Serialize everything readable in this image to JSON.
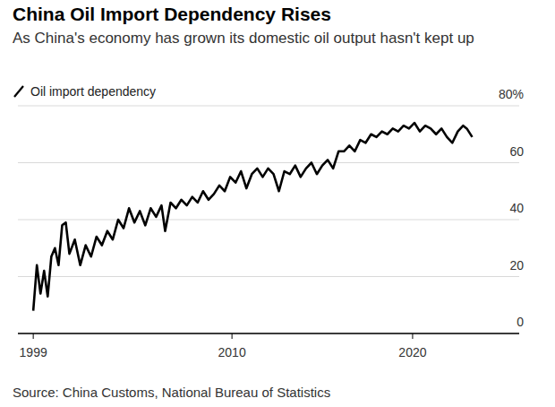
{
  "chart_data": {
    "type": "line",
    "title": "China Oil Import Dependency Rises",
    "subtitle": "As China's economy has grown its domestic oil output hasn't kept up",
    "source": "Source: China Customs, National Bureau of Statistics",
    "x": [
      1999.0,
      1999.2,
      1999.4,
      1999.6,
      1999.8,
      2000.0,
      2000.2,
      2000.4,
      2000.6,
      2000.8,
      2001.0,
      2001.3,
      2001.6,
      2001.9,
      2002.2,
      2002.5,
      2002.8,
      2003.1,
      2003.4,
      2003.7,
      2004.0,
      2004.3,
      2004.6,
      2004.9,
      2005.2,
      2005.5,
      2005.8,
      2006.1,
      2006.3,
      2006.6,
      2006.9,
      2007.2,
      2007.5,
      2007.8,
      2008.1,
      2008.4,
      2008.7,
      2009.0,
      2009.3,
      2009.6,
      2009.9,
      2010.2,
      2010.5,
      2010.8,
      2011.1,
      2011.4,
      2011.7,
      2012.0,
      2012.3,
      2012.6,
      2012.9,
      2013.2,
      2013.5,
      2013.8,
      2014.1,
      2014.4,
      2014.7,
      2015.0,
      2015.3,
      2015.6,
      2015.9,
      2016.2,
      2016.5,
      2016.8,
      2017.1,
      2017.4,
      2017.7,
      2018.0,
      2018.3,
      2018.6,
      2018.9,
      2019.2,
      2019.5,
      2019.8,
      2020.1,
      2020.4,
      2020.7,
      2021.0,
      2021.3,
      2021.6,
      2021.9,
      2022.2,
      2022.5,
      2022.8,
      2023.0,
      2023.3
    ],
    "series": [
      {
        "name": "Oil import dependency",
        "color": "#000000",
        "values": [
          8,
          24,
          14,
          22,
          13,
          27,
          30,
          24,
          38,
          39,
          28,
          33,
          24,
          31,
          27,
          34,
          31,
          36,
          33,
          40,
          37,
          44,
          39,
          43,
          38,
          44,
          41,
          45,
          36,
          46,
          44,
          47,
          45,
          48,
          46,
          50,
          47,
          49,
          52,
          50,
          55,
          53,
          57,
          51,
          56,
          58,
          55,
          58,
          56,
          50,
          57,
          56,
          59,
          55,
          58,
          60,
          56,
          59,
          61,
          58,
          64,
          64,
          66,
          64,
          68,
          67,
          70,
          69,
          71,
          70,
          72,
          71,
          73,
          72,
          74,
          71,
          73,
          72,
          70,
          72,
          69,
          67,
          71,
          73,
          72,
          69
        ]
      }
    ],
    "xlim": [
      1998.15,
      2025.9
    ],
    "xticks": [
      1999,
      2010,
      2020
    ],
    "ylim": [
      0,
      80
    ],
    "yticks": [
      0,
      20,
      40,
      60,
      {
        "value": 80,
        "label": "80%"
      }
    ],
    "grid": true
  }
}
